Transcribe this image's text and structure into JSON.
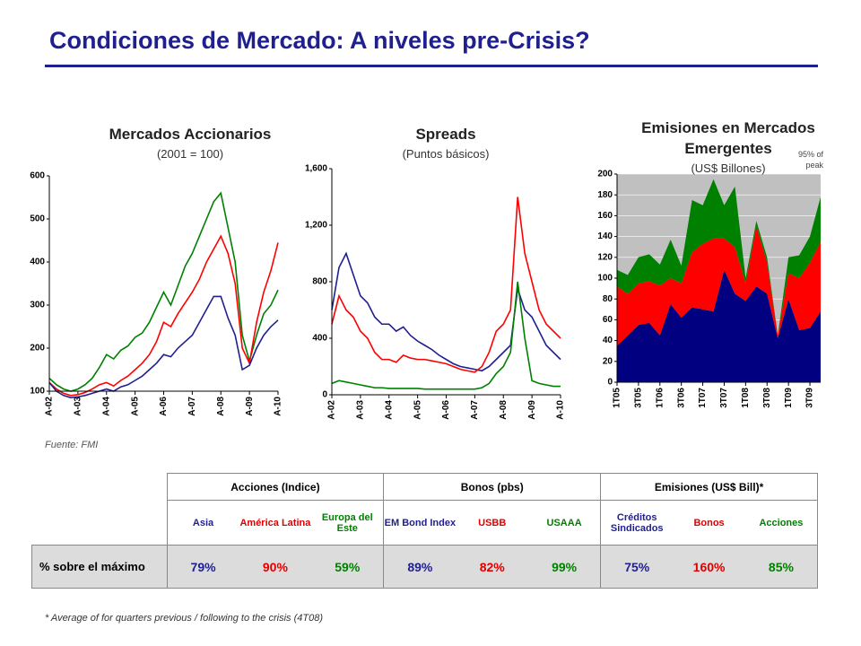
{
  "title": "Condiciones de Mercado: A niveles pre-Crisis?",
  "source": "Fuente: FMI",
  "footnote": "* Average of for quarters previous / following to the crisis (4T08)",
  "chart_data": [
    {
      "type": "line",
      "title": "Mercados Accionarios",
      "subtitle": "(2001 = 100)",
      "categories": [
        "A-02",
        null,
        null,
        null,
        "A-03",
        null,
        null,
        null,
        "A-04",
        null,
        null,
        null,
        "A-05",
        null,
        null,
        null,
        "A-06",
        null,
        null,
        null,
        "A-07",
        null,
        null,
        null,
        "A-08",
        null,
        null,
        null,
        "A-09",
        null,
        null,
        null,
        "A-10"
      ],
      "ylim": [
        100,
        600
      ],
      "yticks": [
        100,
        200,
        300,
        400,
        500,
        600
      ],
      "series": [
        {
          "color": "#008000",
          "values": [
            130,
            115,
            105,
            100,
            105,
            115,
            130,
            155,
            185,
            175,
            195,
            205,
            225,
            235,
            260,
            295,
            330,
            300,
            345,
            390,
            420,
            460,
            500,
            540,
            560,
            480,
            400,
            230,
            170,
            230,
            280,
            300,
            335
          ]
        },
        {
          "color": "#ff0000",
          "values": [
            120,
            105,
            95,
            90,
            92,
            97,
            105,
            115,
            120,
            112,
            125,
            135,
            150,
            165,
            185,
            215,
            260,
            250,
            280,
            305,
            330,
            360,
            400,
            430,
            460,
            420,
            350,
            200,
            165,
            260,
            330,
            380,
            445
          ]
        },
        {
          "color": "#1f1f8f",
          "values": [
            120,
            100,
            90,
            85,
            87,
            90,
            95,
            100,
            105,
            100,
            110,
            115,
            125,
            135,
            150,
            165,
            185,
            180,
            200,
            215,
            230,
            260,
            290,
            320,
            320,
            270,
            230,
            150,
            160,
            200,
            230,
            250,
            265
          ]
        }
      ]
    },
    {
      "type": "line",
      "title": "Spreads",
      "subtitle": "(Puntos básicos)",
      "categories": [
        "A-02",
        null,
        null,
        null,
        "A-03",
        null,
        null,
        null,
        "A-04",
        null,
        null,
        null,
        "A-05",
        null,
        null,
        null,
        "A-06",
        null,
        null,
        null,
        "A-07",
        null,
        null,
        null,
        "A-08",
        null,
        null,
        null,
        "A-09",
        null,
        null,
        null,
        "A-10"
      ],
      "ylim": [
        0,
        1600
      ],
      "yticks": [
        0,
        400,
        800,
        {
          "value": 1200,
          "label": "1,200"
        },
        {
          "value": 1600,
          "label": "1,600"
        }
      ],
      "series": [
        {
          "color": "#1f1f8f",
          "values": [
            600,
            900,
            1000,
            850,
            700,
            650,
            550,
            500,
            500,
            450,
            480,
            420,
            380,
            350,
            320,
            280,
            250,
            220,
            200,
            190,
            180,
            170,
            200,
            250,
            300,
            350,
            750,
            600,
            550,
            450,
            350,
            300,
            250
          ]
        },
        {
          "color": "#ff0000",
          "values": [
            500,
            700,
            600,
            550,
            450,
            400,
            300,
            250,
            250,
            230,
            280,
            260,
            250,
            250,
            240,
            230,
            220,
            200,
            180,
            170,
            160,
            200,
            300,
            450,
            500,
            600,
            1400,
            1000,
            800,
            600,
            500,
            450,
            400
          ]
        },
        {
          "color": "#008000",
          "values": [
            80,
            100,
            90,
            80,
            70,
            60,
            50,
            50,
            45,
            45,
            45,
            45,
            45,
            40,
            40,
            40,
            40,
            40,
            40,
            40,
            40,
            50,
            80,
            150,
            200,
            300,
            800,
            400,
            100,
            80,
            70,
            60,
            60
          ]
        }
      ]
    },
    {
      "type": "area",
      "title": "Emisiones en Mercados Emergentes",
      "subtitle": "(US$ Billones)",
      "annotation": "95% of peak",
      "categories": [
        "1T05",
        null,
        "3T05",
        null,
        "1T06",
        null,
        "3T06",
        null,
        "1T07",
        null,
        "3T07",
        null,
        "1T08",
        null,
        "3T08",
        null,
        "1T09",
        null,
        "3T09",
        null
      ],
      "ylim": [
        0,
        200
      ],
      "yticks": [
        0,
        20,
        40,
        60,
        80,
        100,
        120,
        140,
        160,
        180,
        200
      ],
      "series": [
        {
          "color": "#000080",
          "values": [
            35,
            45,
            55,
            57,
            45,
            75,
            62,
            72,
            70,
            68,
            108,
            85,
            78,
            92,
            85,
            42,
            80,
            50,
            52,
            68
          ]
        },
        {
          "color": "#ff0000",
          "values": [
            57,
            40,
            40,
            40,
            48,
            25,
            33,
            53,
            63,
            70,
            30,
            45,
            17,
            58,
            30,
            3,
            25,
            50,
            63,
            67
          ]
        },
        {
          "color": "#008000",
          "values": [
            16,
            18,
            25,
            26,
            20,
            37,
            17,
            50,
            37,
            57,
            32,
            58,
            5,
            5,
            5,
            0,
            15,
            22,
            25,
            43
          ]
        }
      ]
    }
  ],
  "table": {
    "groups": [
      "Acciones (Indice)",
      "Bonos (pbs)",
      "Emisiones (US$ Bill)*"
    ],
    "columns": [
      "Asia",
      "América Latina",
      "Europa del Este",
      "EM Bond Index",
      "USBB",
      "USAAA",
      "Créditos Sindicados",
      "Bonos",
      "Acciones"
    ],
    "row_label": "% sobre el máximo",
    "values": [
      "79%",
      "90%",
      "59%",
      "89%",
      "82%",
      "99%",
      "75%",
      "160%",
      "85%"
    ]
  }
}
